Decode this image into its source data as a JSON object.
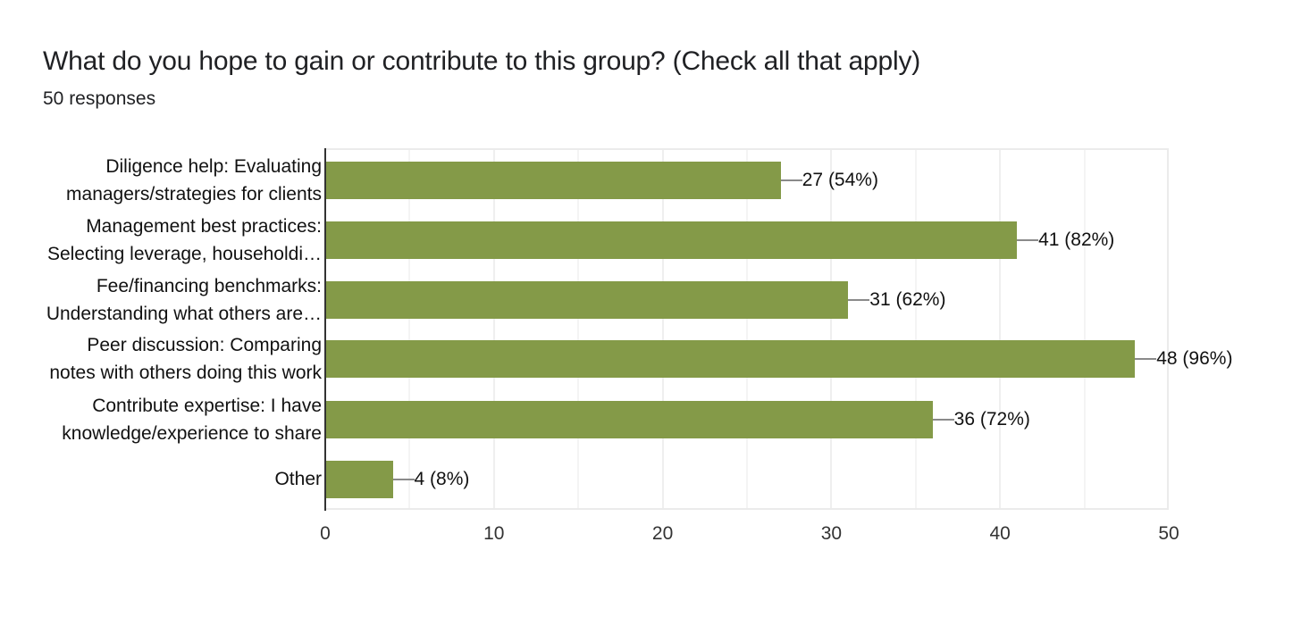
{
  "header": {
    "title": "What do you hope to gain or contribute to this group? (Check all that apply)",
    "subtitle": "50 responses"
  },
  "colors": {
    "bar": "#849a48",
    "grid": "#efefef",
    "axis": "#333333"
  },
  "chart_data": {
    "type": "bar",
    "orientation": "horizontal",
    "title": "What do you hope to gain or contribute to this group? (Check all that apply)",
    "subtitle": "50 responses",
    "xlabel": "",
    "ylabel": "",
    "xlim": [
      0,
      50
    ],
    "xticks": [
      0,
      10,
      20,
      30,
      40,
      50
    ],
    "grid": true,
    "legend": "none",
    "categories": [
      "Diligence help: Evaluating managers/strategies for clients",
      "Management best practices: Selecting leverage, householdi…",
      "Fee/financing benchmarks: Understanding what others are…",
      "Peer discussion: Comparing notes with others doing this work",
      "Contribute expertise: I have knowledge/experience to share",
      "Other"
    ],
    "values": [
      27,
      41,
      31,
      48,
      36,
      4
    ],
    "percentages": [
      54,
      82,
      62,
      96,
      72,
      8
    ],
    "data_labels": [
      "27 (54%)",
      "41 (82%)",
      "31 (62%)",
      "48 (96%)",
      "36 (72%)",
      "4 (8%)"
    ]
  },
  "categories_display": [
    {
      "line1": "Diligence help: Evaluating",
      "line2": "managers/strategies for clients"
    },
    {
      "line1": "Management best practices:",
      "line2": "Selecting leverage, householdi…"
    },
    {
      "line1": "Fee/financing benchmarks:",
      "line2": "Understanding what others are…"
    },
    {
      "line1": "Peer discussion: Comparing",
      "line2": "notes with others doing this work"
    },
    {
      "line1": "Contribute expertise: I have",
      "line2": "knowledge/experience to share"
    },
    {
      "line1": "Other",
      "line2": ""
    }
  ],
  "axis": {
    "ticks": [
      "0",
      "10",
      "20",
      "30",
      "40",
      "50"
    ]
  }
}
